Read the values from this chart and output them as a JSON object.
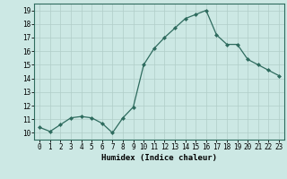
{
  "x": [
    0,
    1,
    2,
    3,
    4,
    5,
    6,
    7,
    8,
    9,
    10,
    11,
    12,
    13,
    14,
    15,
    16,
    17,
    18,
    19,
    20,
    21,
    22,
    23
  ],
  "y": [
    10.4,
    10.1,
    10.6,
    11.1,
    11.2,
    11.1,
    10.7,
    10.0,
    11.1,
    11.9,
    15.0,
    16.2,
    17.0,
    17.7,
    18.4,
    18.7,
    19.0,
    17.2,
    16.5,
    16.5,
    15.4,
    15.0,
    14.6,
    14.2
  ],
  "line_color": "#2e6b5e",
  "marker": "D",
  "marker_size": 2,
  "bg_color": "#cce8e4",
  "grid_color": "#b0cdc8",
  "xlabel": "Humidex (Indice chaleur)",
  "xlim": [
    -0.5,
    23.5
  ],
  "ylim": [
    9.5,
    19.5
  ],
  "yticks": [
    10,
    11,
    12,
    13,
    14,
    15,
    16,
    17,
    18,
    19
  ],
  "xticks": [
    0,
    1,
    2,
    3,
    4,
    5,
    6,
    7,
    8,
    9,
    10,
    11,
    12,
    13,
    14,
    15,
    16,
    17,
    18,
    19,
    20,
    21,
    22,
    23
  ],
  "tick_label_fontsize": 5.5,
  "xlabel_fontsize": 6.5
}
